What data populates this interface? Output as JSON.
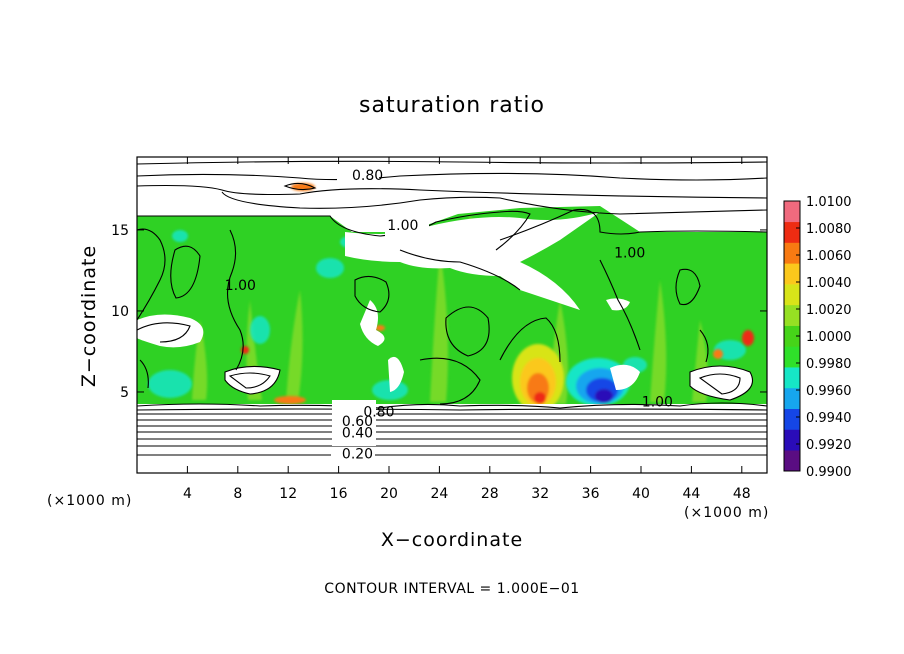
{
  "chart_data": {
    "type": "heatmap",
    "title": "saturation ratio",
    "xlabel": "X−coordinate",
    "ylabel": "Z−coordinate",
    "x_unit": "(×1000 m)",
    "y_unit": "(×1000 m)",
    "xlim": [
      0,
      50
    ],
    "ylim": [
      0,
      19.5
    ],
    "x_ticks": [
      4,
      8,
      12,
      16,
      20,
      24,
      28,
      32,
      36,
      40,
      44,
      48
    ],
    "y_ticks": [
      5,
      10,
      15
    ],
    "color_scale": {
      "min": 0.99,
      "max": 1.01,
      "ticks": [
        "1.0100",
        "1.0080",
        "1.0060",
        "1.0040",
        "1.0020",
        "1.0000",
        "0.9980",
        "0.9960",
        "0.9940",
        "0.9920",
        "0.9900"
      ],
      "colors": [
        "#5a0d82",
        "#2a0cb8",
        "#1546e6",
        "#16a6ee",
        "#16e6c6",
        "#2fe02a",
        "#46d419",
        "#96e023",
        "#d8e419",
        "#fbc81c",
        "#f87a12",
        "#ee2c12",
        "#f06a7e"
      ]
    },
    "contour_labels": [
      {
        "text": "0.80",
        "x": 18.3,
        "z": 18.4
      },
      {
        "text": "1.00",
        "x": 21.1,
        "z": 15.3
      },
      {
        "text": "1.00",
        "x": 8.2,
        "z": 11.6
      },
      {
        "text": "1.00",
        "x": 39.1,
        "z": 13.6
      },
      {
        "text": "1.00",
        "x": 41.3,
        "z": 4.4
      },
      {
        "text": "0.80",
        "x": 19.2,
        "z": 3.8
      },
      {
        "text": "0.60",
        "x": 17.5,
        "z": 3.2
      },
      {
        "text": "0.40",
        "x": 17.5,
        "z": 2.5
      },
      {
        "text": "0.20",
        "x": 17.5,
        "z": 1.2
      }
    ],
    "contour_interval_note": "CONTOUR INTERVAL = 1.000E−01"
  }
}
